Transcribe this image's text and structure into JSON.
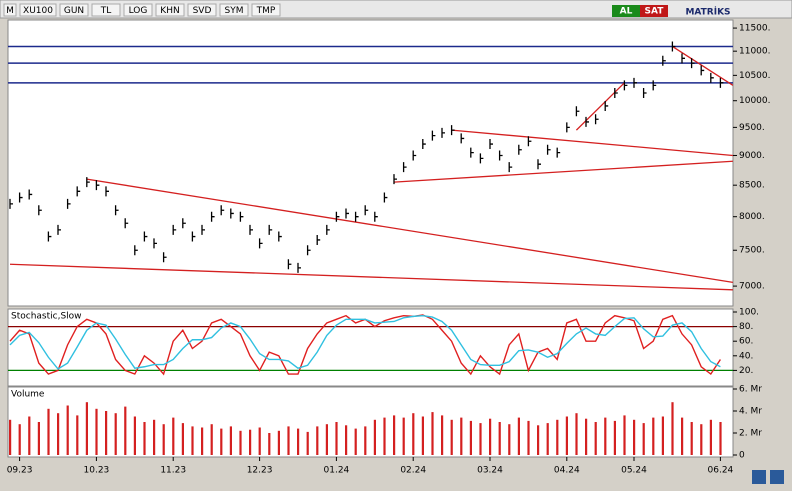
{
  "toolbar": {
    "items": [
      "M",
      "XU100",
      "GUN",
      "TL",
      "LOG",
      "KHN",
      "SVD",
      "SYM",
      "TMP"
    ],
    "buy": "AL",
    "sell": "SAT",
    "brand": "MATRİKS"
  },
  "chart_data": [
    {
      "type": "ohlc-close",
      "categories": [
        null,
        "09.23",
        null,
        null,
        null,
        null,
        null,
        null,
        null,
        "10.23",
        null,
        null,
        null,
        null,
        null,
        null,
        null,
        "11.23",
        null,
        null,
        null,
        null,
        null,
        null,
        null,
        null,
        "12.23",
        null,
        null,
        null,
        null,
        null,
        null,
        null,
        "01.24",
        null,
        null,
        null,
        null,
        null,
        null,
        null,
        "02.24",
        null,
        null,
        null,
        null,
        null,
        null,
        null,
        "03.24",
        null,
        null,
        null,
        null,
        null,
        null,
        null,
        "04.24",
        null,
        null,
        null,
        null,
        null,
        null,
        "05.24",
        null,
        null,
        null,
        null,
        null,
        null,
        null,
        null,
        "06.24"
      ],
      "values": [
        8200,
        8300,
        8350,
        8100,
        7700,
        7800,
        8200,
        8400,
        8550,
        8500,
        8400,
        8100,
        7900,
        7500,
        7700,
        7600,
        7400,
        7800,
        7900,
        7700,
        7800,
        8000,
        8100,
        8050,
        8000,
        7800,
        7600,
        7800,
        7700,
        7300,
        7250,
        7500,
        7650,
        7800,
        8000,
        8050,
        8000,
        8100,
        8000,
        8300,
        8600,
        8800,
        9000,
        9200,
        9350,
        9400,
        9450,
        9300,
        9050,
        8950,
        9200,
        9000,
        8800,
        9100,
        9250,
        8850,
        9100,
        9050,
        9500,
        9800,
        9600,
        9650,
        9900,
        10150,
        10300,
        10350,
        10150,
        10300,
        10800,
        11100,
        10850,
        10750,
        10600,
        10450,
        10350
      ],
      "color": "#000000",
      "log": true,
      "ylim": [
        6750,
        11680
      ],
      "yticks": [
        {
          "value": 7000,
          "label": "7000."
        },
        {
          "value": 7500,
          "label": "7500."
        },
        {
          "value": 8000,
          "label": "8000."
        },
        {
          "value": 8500,
          "label": "8500."
        },
        {
          "value": 9000,
          "label": "9000."
        },
        {
          "value": 9500,
          "label": "9500."
        },
        {
          "value": 10000,
          "label": "10000."
        },
        {
          "value": 10500,
          "label": "10500."
        },
        {
          "value": 11000,
          "label": "11000."
        },
        {
          "value": 11500,
          "label": "11500."
        }
      ],
      "hlines": [
        11100,
        10750,
        10350
      ],
      "hline_color": "#1c2a8c",
      "trendlines": [
        [
          [
            8,
            8600
          ],
          [
            75.3,
            7050
          ]
        ],
        [
          [
            0,
            7300
          ],
          [
            75.3,
            6950
          ]
        ],
        [
          [
            46,
            9450
          ],
          [
            75.3,
            9000
          ]
        ],
        [
          [
            40,
            8550
          ],
          [
            75.3,
            8900
          ]
        ],
        [
          [
            59,
            9450
          ],
          [
            64,
            10350
          ]
        ],
        [
          [
            69,
            11100
          ],
          [
            75.3,
            10300
          ]
        ]
      ],
      "trend_color": "#d42020"
    },
    {
      "type": "line",
      "title": "Stochastic,Slow",
      "ylim": [
        0,
        100
      ],
      "yticks": [
        {
          "value": 100,
          "label": "100."
        },
        {
          "value": 80,
          "label": "80."
        },
        {
          "value": 60,
          "label": "60."
        },
        {
          "value": 40,
          "label": "40."
        },
        {
          "value": 20,
          "label": "20."
        }
      ],
      "hlines": [
        {
          "value": 80,
          "color": "#8b0000"
        },
        {
          "value": 20,
          "color": "#008000"
        }
      ],
      "series": [
        {
          "color": "#e02020",
          "values": [
            60,
            75,
            70,
            30,
            15,
            20,
            55,
            80,
            90,
            85,
            70,
            35,
            20,
            15,
            40,
            30,
            15,
            60,
            75,
            50,
            60,
            85,
            90,
            80,
            70,
            40,
            20,
            45,
            40,
            15,
            15,
            50,
            70,
            85,
            90,
            95,
            85,
            90,
            80,
            88,
            92,
            95,
            94,
            96,
            90,
            75,
            60,
            30,
            15,
            40,
            25,
            15,
            55,
            70,
            20,
            45,
            50,
            35,
            85,
            90,
            60,
            60,
            85,
            95,
            92,
            88,
            50,
            60,
            90,
            95,
            70,
            55,
            25,
            15,
            35
          ]
        },
        {
          "color": "#30c0e0",
          "values": [
            55,
            68,
            72,
            58,
            38,
            22,
            30,
            52,
            75,
            85,
            82,
            63,
            42,
            23,
            25,
            28,
            28,
            35,
            50,
            62,
            62,
            65,
            78,
            85,
            80,
            63,
            43,
            35,
            35,
            33,
            23,
            27,
            45,
            68,
            82,
            90,
            90,
            90,
            85,
            86,
            87,
            92,
            94,
            95,
            93,
            87,
            75,
            55,
            35,
            28,
            27,
            27,
            32,
            47,
            48,
            45,
            38,
            43,
            57,
            70,
            78,
            70,
            68,
            80,
            91,
            92,
            77,
            66,
            67,
            82,
            85,
            73,
            50,
            32,
            25
          ]
        }
      ]
    },
    {
      "type": "bar",
      "title": "Volume",
      "color": "#d42020",
      "ylim": [
        0,
        6
      ],
      "yticks": [
        {
          "value": 6,
          "label": "6. Mr"
        },
        {
          "value": 4,
          "label": "4. Mr"
        },
        {
          "value": 2,
          "label": "2. Mr"
        },
        0
      ],
      "values": [
        3.2,
        2.8,
        3.5,
        3,
        4.2,
        3.8,
        4.5,
        3.6,
        4.8,
        4.2,
        4,
        3.8,
        4.4,
        3.5,
        3,
        3.2,
        2.8,
        3.4,
        2.9,
        2.6,
        2.5,
        2.8,
        2.4,
        2.6,
        2.2,
        2.3,
        2.5,
        2,
        2.2,
        2.6,
        2.4,
        2.1,
        2.6,
        2.8,
        3,
        2.7,
        2.4,
        2.6,
        3.2,
        3.4,
        3.6,
        3.4,
        3.8,
        3.5,
        3.9,
        3.6,
        3.2,
        3.4,
        3.1,
        2.9,
        3.3,
        3,
        2.8,
        3.4,
        3.1,
        2.7,
        2.9,
        3.2,
        3.5,
        3.8,
        3.3,
        3,
        3.4,
        3.1,
        3.6,
        3.2,
        2.9,
        3.4,
        3.5,
        4.8,
        3.4,
        3,
        2.8,
        3.2,
        3
      ]
    }
  ]
}
